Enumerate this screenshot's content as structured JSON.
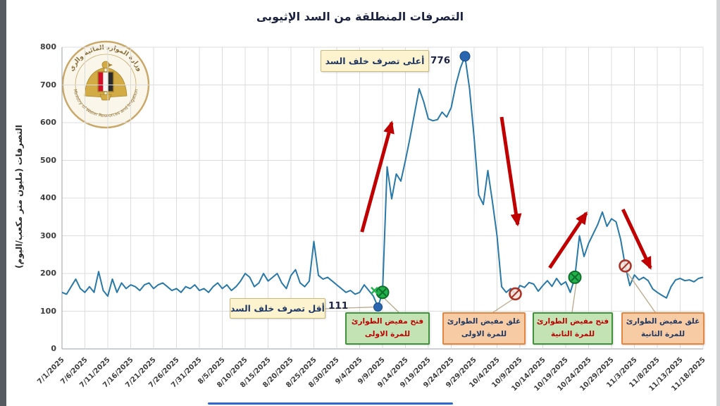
{
  "title": "التصرفات المنطلقة من السد الإثيوبى",
  "logo": {
    "name": "ministry-of-water-resources-and-irrigation-seal",
    "top_text": "وزارة الموارد المائية والري",
    "bottom_text": "Ministry of Water Resources and Irrigation"
  },
  "chart_data": {
    "type": "line",
    "title": "التصرفات المنطلقة من السد الإثيوبى",
    "xlabel": "",
    "ylabel": "التصرفات (مليون متر مكعب/اليوم)",
    "ylim": [
      0,
      800
    ],
    "y_ticks": [
      0,
      100,
      200,
      300,
      400,
      500,
      600,
      700,
      800
    ],
    "grid": true,
    "legend": "none",
    "x_tick_labels": [
      "7/1/2025",
      "7/6/2025",
      "7/11/2025",
      "7/16/2025",
      "7/21/2025",
      "7/26/2025",
      "7/31/2025",
      "8/5/2025",
      "8/10/2025",
      "8/15/2025",
      "8/20/2025",
      "8/25/2025",
      "8/30/2025",
      "9/4/2025",
      "9/9/2025",
      "9/14/2025",
      "9/19/2025",
      "9/24/2025",
      "9/29/2025",
      "10/4/2025",
      "10/9/2025",
      "10/14/2025",
      "10/19/2025",
      "10/24/2025",
      "10/29/2025",
      "11/3/2025",
      "11/8/2025",
      "11/13/2025",
      "11/18/2025"
    ],
    "x_start_date": "7/1/2025",
    "x_end_date": "11/18/2025",
    "days_total": 140,
    "tick_step_days": 5,
    "values": [
      150,
      145,
      165,
      185,
      160,
      150,
      165,
      150,
      205,
      155,
      140,
      185,
      150,
      175,
      160,
      170,
      165,
      155,
      170,
      175,
      160,
      170,
      175,
      165,
      155,
      160,
      150,
      165,
      160,
      170,
      155,
      160,
      150,
      165,
      175,
      160,
      170,
      155,
      165,
      180,
      200,
      190,
      165,
      175,
      200,
      180,
      190,
      200,
      175,
      160,
      195,
      210,
      175,
      165,
      180,
      285,
      195,
      185,
      190,
      180,
      170,
      160,
      150,
      155,
      145,
      150,
      170,
      155,
      140,
      111,
      150,
      483,
      398,
      464,
      445,
      500,
      560,
      625,
      690,
      655,
      610,
      605,
      608,
      628,
      615,
      640,
      700,
      745,
      776,
      690,
      560,
      408,
      383,
      473,
      390,
      300,
      165,
      150,
      160,
      146,
      168,
      163,
      176,
      172,
      153,
      168,
      181,
      166,
      187,
      170,
      178,
      150,
      190,
      300,
      245,
      280,
      305,
      330,
      363,
      325,
      345,
      337,
      290,
      220,
      168,
      196,
      183,
      190,
      181,
      159,
      150,
      142,
      135,
      165,
      183,
      187,
      181,
      183,
      178,
      187,
      190
    ],
    "annotations": {
      "max": {
        "label": "أعلى تصرف خلف السد",
        "value": "776",
        "day_index": 88
      },
      "min": {
        "label": "أقل تصرف خلف السد",
        "value": "111",
        "day_index": 69
      },
      "events": [
        {
          "type": "open",
          "day_index": 70,
          "value": 150,
          "label_line1": "فتح مفيض الطوارئ",
          "label_line2": "للمرة الاولى"
        },
        {
          "type": "close",
          "day_index": 99,
          "value": 146,
          "label_line1": "غلق مفيض الطوارئ",
          "label_line2": "للمرة الاولى"
        },
        {
          "type": "open",
          "day_index": 112,
          "value": 190,
          "label_line1": "فتح مفيض الطوارئ",
          "label_line2": "للمرة الثانية"
        },
        {
          "type": "close",
          "day_index": 123,
          "value": 220,
          "label_line1": "غلق مفيض الطوارئ",
          "label_line2": "للمرة الثانية"
        }
      ],
      "arrows": [
        {
          "direction": "up",
          "from_day": 65.5,
          "from_value": 310,
          "to_day": 72,
          "to_value": 600
        },
        {
          "direction": "down",
          "from_day": 96,
          "from_value": 615,
          "to_day": 99.5,
          "to_value": 330
        },
        {
          "direction": "up",
          "from_day": 106.5,
          "from_value": 215,
          "to_day": 114.5,
          "to_value": 360
        },
        {
          "direction": "down",
          "from_day": 122.5,
          "from_value": 370,
          "to_day": 128.5,
          "to_value": 215
        }
      ]
    },
    "colors": {
      "line": "#2878a8",
      "marker_blue": "#2a66b0",
      "open_marker_green": "#22b14c",
      "open_marker_green_dark": "#0e6e2a",
      "close_marker_red": "#a93226",
      "arrow_red": "#c00000",
      "grid": "#dcdcdc",
      "axis": "#9aa0a6",
      "leader": "#b9a88a",
      "callout_bg": "#fdf3cf",
      "callout_border": "#c9b97a",
      "open_box_bg": "#c4e3b4",
      "open_box_border": "#41903c",
      "close_box_bg": "#f7cba4",
      "close_box_border": "#e28743"
    }
  }
}
